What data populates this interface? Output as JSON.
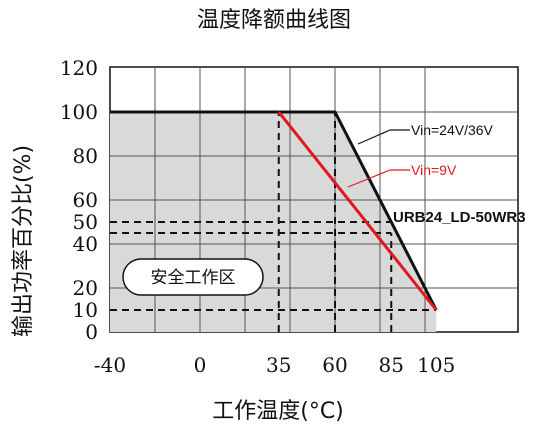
{
  "chart_data": {
    "type": "line",
    "title": "温度降额曲线图",
    "xlabel": "工作温度(°C)",
    "ylabel": "输出功率百分比(%)",
    "x_ticks": [
      "-40",
      "0",
      "35",
      "60",
      "85",
      "105"
    ],
    "y_ticks": [
      "0",
      "10",
      "20",
      "40",
      "50",
      "60",
      "80",
      "100",
      "120"
    ],
    "xlim": [
      -40,
      115
    ],
    "ylim": [
      0,
      120
    ],
    "grid": true,
    "series": [
      {
        "name": "Vin=24V/36V",
        "color": "#111111",
        "x": [
          -40,
          60,
          105
        ],
        "y": [
          100,
          100,
          10
        ]
      },
      {
        "name": "Vin=9V",
        "color": "#e0191e",
        "x": [
          35,
          105
        ],
        "y": [
          100,
          10
        ]
      }
    ],
    "reference_lines": [
      {
        "x": 35,
        "y_from": 0,
        "y_to": 100
      },
      {
        "x": 60,
        "y_from": 0,
        "y_to": 100
      },
      {
        "x": 85,
        "y_from": 0,
        "y_to": 45
      },
      {
        "y": 50,
        "x_from": -40,
        "x_to": 85
      },
      {
        "y": 45,
        "x_from": -40,
        "x_to": 85
      },
      {
        "y": 10,
        "x_from": -40,
        "x_to": 105
      }
    ],
    "shaded_area_color": "#d9d9d9",
    "annotations": {
      "model": "URB24_LD-50WR3",
      "safe_zone": "安全工作区"
    }
  }
}
